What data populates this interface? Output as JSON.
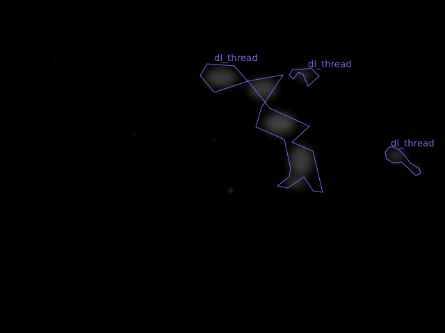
{
  "image": {
    "background_color": "#000000",
    "annotation_color": "#6e6ef0",
    "blob_color": "#3a3a3a"
  },
  "annotations": [
    {
      "label": "dl_thread"
    },
    {
      "label": "dl_thread"
    },
    {
      "label": "dl_thread"
    }
  ]
}
